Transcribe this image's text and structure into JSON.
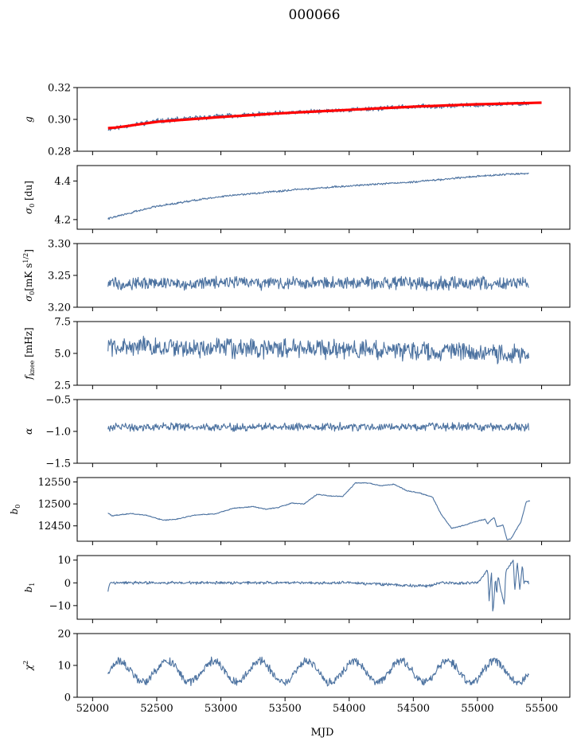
{
  "figure": {
    "title": "000066",
    "xlabel": "MJD"
  },
  "chart_data": [
    {
      "type": "line",
      "ylabel": "g",
      "xlim": [
        51880,
        55720
      ],
      "ylim": [
        0.28,
        0.32
      ],
      "yticks": [
        0.28,
        0.3,
        0.32
      ],
      "ytick_labels": [
        "0.28",
        "0.30",
        "0.32"
      ],
      "xticks": [
        52000,
        52500,
        53000,
        53500,
        54000,
        54500,
        55000,
        55500
      ],
      "series": [
        {
          "name": "g",
          "color": "#4c72a0",
          "x": [
            52120,
            52200,
            52500,
            53000,
            53500,
            54000,
            54500,
            55000,
            55400
          ],
          "y": [
            0.294,
            0.295,
            0.299,
            0.302,
            0.304,
            0.306,
            0.308,
            0.309,
            0.31
          ],
          "noise": 0.0012,
          "seed": 11
        },
        {
          "name": "g fit",
          "color": "#ff0000",
          "x": [
            52120,
            52200,
            52500,
            53000,
            53500,
            54000,
            54500,
            55000,
            55500
          ],
          "y": [
            0.2945,
            0.295,
            0.2985,
            0.3015,
            0.304,
            0.306,
            0.308,
            0.3095,
            0.3105
          ]
        }
      ]
    },
    {
      "type": "line",
      "ylabel": "σ0 [du]",
      "xlim": [
        51880,
        55720
      ],
      "ylim": [
        4.15,
        4.48
      ],
      "yticks": [
        4.2,
        4.4
      ],
      "ytick_labels": [
        "4.2",
        "4.4"
      ],
      "series": [
        {
          "name": "sigma0_du",
          "color": "#4c72a0",
          "x": [
            52120,
            52500,
            53000,
            53500,
            54000,
            54500,
            55000,
            55400
          ],
          "y": [
            4.205,
            4.27,
            4.32,
            4.35,
            4.375,
            4.395,
            4.425,
            4.44
          ],
          "noise": 0.004,
          "seed": 22
        }
      ]
    },
    {
      "type": "line",
      "ylabel": "σ0[mK s^1/2]",
      "xlim": [
        51880,
        55720
      ],
      "ylim": [
        3.2,
        3.3
      ],
      "yticks": [
        3.2,
        3.25,
        3.3
      ],
      "ytick_labels": [
        "3.20",
        "3.25",
        "3.30"
      ],
      "series": [
        {
          "name": "sigma0_mK",
          "color": "#4c72a0",
          "x": [
            52120,
            55400
          ],
          "y": [
            3.238,
            3.238
          ],
          "noise": 0.008,
          "seed": 33
        }
      ]
    },
    {
      "type": "line",
      "ylabel": "fknee [mHz]",
      "xlim": [
        51880,
        55720
      ],
      "ylim": [
        2.5,
        7.5
      ],
      "yticks": [
        2.5,
        5.0,
        7.5
      ],
      "ytick_labels": [
        "2.5",
        "5.0",
        "7.5"
      ],
      "series": [
        {
          "name": "fknee",
          "color": "#4c72a0",
          "x": [
            52120,
            52300,
            53000,
            54000,
            55000,
            55400
          ],
          "y": [
            5.6,
            5.5,
            5.4,
            5.3,
            5.1,
            4.9
          ],
          "noise": 0.6,
          "seed": 44
        }
      ]
    },
    {
      "type": "line",
      "ylabel": "α",
      "xlim": [
        51880,
        55720
      ],
      "ylim": [
        -1.5,
        -0.5
      ],
      "yticks": [
        -1.5,
        -1.0,
        -0.5
      ],
      "ytick_labels": [
        "−1.5",
        "−1.0",
        "−0.5"
      ],
      "series": [
        {
          "name": "alpha",
          "color": "#4c72a0",
          "x": [
            52120,
            55400
          ],
          "y": [
            -0.93,
            -0.93
          ],
          "noise": 0.05,
          "seed": 55
        }
      ]
    },
    {
      "type": "line",
      "ylabel": "b0",
      "xlim": [
        51880,
        55720
      ],
      "ylim": [
        12415,
        12560
      ],
      "yticks": [
        12450,
        12500,
        12550
      ],
      "ytick_labels": [
        "12450",
        "12500",
        "12550"
      ],
      "series": [
        {
          "name": "b0",
          "color": "#4c72a0",
          "x": [
            52120,
            52150,
            52300,
            52420,
            52550,
            52650,
            52800,
            52950,
            53100,
            53250,
            53350,
            53450,
            53550,
            53650,
            53750,
            53850,
            53950,
            54050,
            54150,
            54250,
            54350,
            54450,
            54550,
            54650,
            54720,
            54800,
            54880,
            55000,
            55060,
            55080,
            55130,
            55150,
            55200,
            55230,
            55260,
            55300,
            55340,
            55380,
            55410
          ],
          "y": [
            12480,
            12473,
            12478,
            12474,
            12463,
            12465,
            12475,
            12477,
            12490,
            12494,
            12488,
            12492,
            12502,
            12500,
            12522,
            12518,
            12517,
            12548,
            12548,
            12541,
            12545,
            12530,
            12525,
            12515,
            12475,
            12444,
            12450,
            12461,
            12465,
            12455,
            12470,
            12448,
            12452,
            12418,
            12420,
            12440,
            12460,
            12505,
            12507
          ],
          "noise": 0.8,
          "seed": 66
        }
      ]
    },
    {
      "type": "line",
      "ylabel": "b1",
      "xlim": [
        51880,
        55720
      ],
      "ylim": [
        -16,
        12
      ],
      "yticks": [
        -10,
        0,
        10
      ],
      "ytick_labels": [
        "−10",
        "0",
        "10"
      ],
      "series": [
        {
          "name": "b1",
          "color": "#4c72a0",
          "x": [
            52120,
            52135,
            52150,
            53000,
            54000,
            54600,
            54700,
            55000,
            55080,
            55090,
            55110,
            55120,
            55140,
            55150,
            55160,
            55210,
            55220,
            55280,
            55290,
            55310,
            55330,
            55350,
            55360,
            55380,
            55400
          ],
          "y": [
            -3.5,
            0,
            0,
            0,
            0,
            -1.5,
            0,
            0,
            6,
            -8,
            5,
            -14,
            2,
            -5,
            3,
            -10,
            5,
            10,
            -4,
            9,
            -3,
            8,
            0,
            1,
            0
          ],
          "noise": 0.5,
          "seed": 77
        }
      ]
    },
    {
      "type": "line",
      "ylabel": "χ2",
      "xlim": [
        51880,
        55720
      ],
      "ylim": [
        0,
        20
      ],
      "yticks": [
        0,
        10,
        20
      ],
      "ytick_labels": [
        "0",
        "10",
        "20"
      ],
      "xticks": [
        52000,
        52500,
        53000,
        53500,
        54000,
        54500,
        55000,
        55500
      ],
      "xtick_labels": [
        "52000",
        "52500",
        "53000",
        "53500",
        "54000",
        "54500",
        "55000",
        "55500"
      ],
      "series": [
        {
          "name": "chi2",
          "color": "#4c72a0",
          "x": [
            52120,
            55400
          ],
          "y": [
            8,
            8
          ],
          "periodic_amp": 3.3,
          "period_days": 365,
          "noise": 1.0,
          "seed": 88
        }
      ]
    }
  ]
}
